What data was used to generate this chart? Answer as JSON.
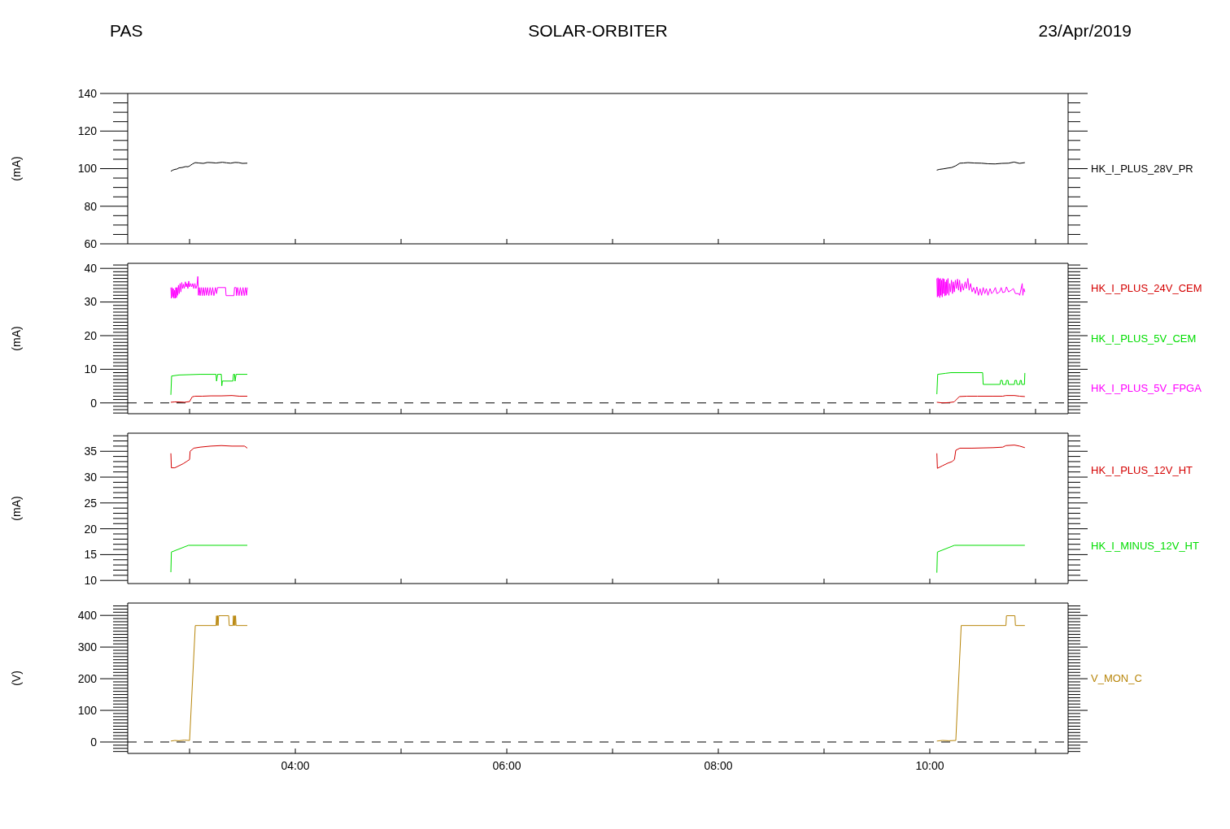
{
  "chart_data": [
    {
      "type": "line",
      "title": "SOLAR-ORBITER",
      "annotations": [
        "PAS",
        "23/Apr/2019"
      ],
      "ylabel": "(mA)",
      "xlim": [
        2.415,
        11.308
      ],
      "xticks": [
        {
          "value": 3,
          "label": null
        },
        {
          "value": 4,
          "label": null
        },
        {
          "value": 5,
          "label": null
        },
        {
          "value": 6,
          "label": null
        },
        {
          "value": 7,
          "label": null
        },
        {
          "value": 8,
          "label": null
        },
        {
          "value": 9,
          "label": null
        },
        {
          "value": 10,
          "label": null
        },
        {
          "value": 11,
          "label": null
        }
      ],
      "tick_labels": "y",
      "ylim": [
        60,
        140
      ],
      "yticks": [
        60,
        {
          "value": 65,
          "label": null
        },
        {
          "value": 70,
          "label": null
        },
        {
          "value": 75,
          "label": null
        },
        80,
        {
          "value": 85,
          "label": null
        },
        {
          "value": 90,
          "label": null
        },
        {
          "value": 95,
          "label": null
        },
        100,
        {
          "value": 105,
          "label": null
        },
        {
          "value": 110,
          "label": null
        },
        {
          "value": 115,
          "label": null
        },
        120,
        {
          "value": 125,
          "label": null
        },
        {
          "value": 130,
          "label": null
        },
        {
          "value": 135,
          "label": null
        },
        140
      ],
      "legend": "right",
      "series": [
        {
          "name": "HK_I_PLUS_28V_PR",
          "color": "#000000",
          "x": [
            2.823,
            2.84,
            2.861,
            2.88,
            2.9,
            2.93,
            2.963,
            2.985,
            3.002,
            3.028,
            3.053,
            3.09,
            3.13,
            3.17,
            3.207,
            3.25,
            3.31,
            3.35,
            3.387,
            3.43,
            3.464,
            3.5,
            3.546,
            6.8,
            10.066,
            10.09,
            10.13,
            10.17,
            10.207,
            10.245,
            10.284,
            10.32,
            10.361,
            10.42,
            10.489,
            10.55,
            10.617,
            10.68,
            10.745,
            10.797,
            10.848,
            10.899
          ],
          "values": [
            98.6,
            99.2,
            99.6,
            99.8,
            100.4,
            100.6,
            101.1,
            101.0,
            101.5,
            102.5,
            103.2,
            103.0,
            102.8,
            103.3,
            103.2,
            103.0,
            103.4,
            103.1,
            102.9,
            103.3,
            103.2,
            102.8,
            102.9,
            null,
            99.2,
            99.6,
            99.9,
            100.3,
            100.6,
            101.5,
            102.9,
            103.0,
            103.2,
            103.0,
            102.9,
            102.6,
            102.5,
            102.8,
            102.9,
            103.5,
            102.8,
            103.2
          ]
        }
      ]
    },
    {
      "type": "line",
      "ylabel": "(mA)",
      "xlim": [
        2.415,
        11.308
      ],
      "xticks": [
        {
          "value": 3,
          "label": null
        },
        {
          "value": 4,
          "label": null
        },
        {
          "value": 5,
          "label": null
        },
        {
          "value": 6,
          "label": null
        },
        {
          "value": 7,
          "label": null
        },
        {
          "value": 8,
          "label": null
        },
        {
          "value": 9,
          "label": null
        },
        {
          "value": 10,
          "label": null
        },
        {
          "value": 11,
          "label": null
        }
      ],
      "tick_labels": "y",
      "ylim": [
        -3.2,
        41.5
      ],
      "yticks": [
        {
          "value": -3,
          "label": null
        },
        {
          "value": -2,
          "label": null
        },
        {
          "value": -1,
          "label": null
        },
        0,
        {
          "value": 1,
          "label": null
        },
        {
          "value": 2,
          "label": null
        },
        {
          "value": 3,
          "label": null
        },
        {
          "value": 4,
          "label": null
        },
        {
          "value": 5,
          "label": null
        },
        {
          "value": 6,
          "label": null
        },
        {
          "value": 7,
          "label": null
        },
        {
          "value": 8,
          "label": null
        },
        {
          "value": 9,
          "label": null
        },
        10,
        {
          "value": 11,
          "label": null
        },
        {
          "value": 12,
          "label": null
        },
        {
          "value": 13,
          "label": null
        },
        {
          "value": 14,
          "label": null
        },
        {
          "value": 15,
          "label": null
        },
        {
          "value": 16,
          "label": null
        },
        {
          "value": 17,
          "label": null
        },
        {
          "value": 18,
          "label": null
        },
        {
          "value": 19,
          "label": null
        },
        20,
        {
          "value": 21,
          "label": null
        },
        {
          "value": 22,
          "label": null
        },
        {
          "value": 23,
          "label": null
        },
        {
          "value": 24,
          "label": null
        },
        {
          "value": 25,
          "label": null
        },
        {
          "value": 26,
          "label": null
        },
        {
          "value": 27,
          "label": null
        },
        {
          "value": 28,
          "label": null
        },
        {
          "value": 29,
          "label": null
        },
        30,
        {
          "value": 31,
          "label": null
        },
        {
          "value": 32,
          "label": null
        },
        {
          "value": 33,
          "label": null
        },
        {
          "value": 34,
          "label": null
        },
        {
          "value": 35,
          "label": null
        },
        {
          "value": 36,
          "label": null
        },
        {
          "value": 37,
          "label": null
        },
        {
          "value": 38,
          "label": null
        },
        {
          "value": 39,
          "label": null
        },
        40,
        {
          "value": 41,
          "label": null
        }
      ],
      "legend": "right",
      "ref_lines": [
        {
          "axis": "y",
          "value": 0,
          "color": "#000000",
          "line_style": "dashed"
        }
      ],
      "series": [
        {
          "name": "HK_I_PLUS_24V_CEM",
          "color": "#d40000",
          "x": [
            2.823,
            2.86,
            2.9,
            2.95,
            3.0,
            3.025,
            3.05,
            3.12,
            3.2,
            3.3,
            3.4,
            3.47,
            3.546,
            6.8,
            10.067,
            10.12,
            10.18,
            10.23,
            10.28,
            10.35,
            10.45,
            10.6,
            10.69,
            10.72,
            10.8,
            10.85,
            10.899
          ],
          "values": [
            0.2,
            0.3,
            0.3,
            0.2,
            0.4,
            1.8,
            2.0,
            2.0,
            2.1,
            2.1,
            2.2,
            2.0,
            2.0,
            null,
            0.2,
            0.0,
            0.1,
            0.3,
            1.9,
            2.0,
            2.0,
            2.0,
            2.0,
            2.2,
            2.2,
            2.0,
            1.9
          ]
        },
        {
          "name": "HK_I_PLUS_5V_CEM",
          "color": "#00dd00",
          "x": [
            2.823,
            2.83,
            2.9,
            3.0,
            3.1,
            3.25,
            3.255,
            3.265,
            3.3,
            3.305,
            3.31,
            3.41,
            3.415,
            3.425,
            3.43,
            3.44,
            3.546,
            6.8,
            10.067,
            10.075,
            10.15,
            10.2,
            10.5,
            10.505,
            10.665,
            10.67,
            10.685,
            10.69,
            10.72,
            10.725,
            10.74,
            10.745,
            10.8,
            10.805,
            10.82,
            10.825,
            10.85,
            10.855,
            10.865,
            10.87,
            10.895,
            10.899
          ],
          "values": [
            2.4,
            8.0,
            8.3,
            8.4,
            8.5,
            8.5,
            6.5,
            8.5,
            8.5,
            5.1,
            6.5,
            6.5,
            8.5,
            8.5,
            6.5,
            8.5,
            8.5,
            null,
            2.6,
            8.5,
            8.8,
            9.0,
            9.0,
            5.5,
            5.5,
            6.7,
            6.7,
            5.5,
            5.5,
            6.7,
            6.7,
            5.5,
            5.5,
            6.7,
            6.7,
            5.5,
            5.5,
            6.7,
            6.7,
            5.5,
            5.5,
            8.9
          ]
        },
        {
          "name": "HK_I_PLUS_5V_FPGA",
          "color": "#ff00ff",
          "x": [
            2.823,
            2.828,
            2.834,
            2.84,
            2.846,
            2.852,
            2.858,
            2.864,
            2.87,
            2.876,
            2.882,
            2.888,
            2.895,
            2.902,
            2.91,
            2.918,
            2.926,
            2.934,
            2.942,
            2.95,
            2.96,
            2.968,
            2.976,
            2.984,
            2.992,
            3.0,
            3.01,
            3.02,
            3.03,
            3.04,
            3.05,
            3.06,
            3.07,
            3.078,
            3.084,
            3.092,
            3.1,
            3.11,
            3.12,
            3.13,
            3.14,
            3.15,
            3.16,
            3.17,
            3.182,
            3.194,
            3.206,
            3.218,
            3.23,
            3.245,
            3.255,
            3.265,
            3.34,
            3.345,
            3.42,
            3.425,
            3.44,
            3.445,
            3.455,
            3.468,
            3.48,
            3.493,
            3.505,
            3.517,
            3.529,
            3.538,
            3.546,
            6.8,
            10.067,
            10.072,
            10.078,
            10.083,
            10.089,
            10.094,
            10.1,
            10.106,
            10.112,
            10.118,
            10.124,
            10.13,
            10.136,
            10.142,
            10.148,
            10.154,
            10.16,
            10.166,
            10.172,
            10.18,
            10.188,
            10.196,
            10.205,
            10.214,
            10.222,
            10.232,
            10.242,
            10.252,
            10.262,
            10.272,
            10.282,
            10.292,
            10.305,
            10.318,
            10.335,
            10.345,
            10.36,
            10.372,
            10.385,
            10.4,
            10.415,
            10.43,
            10.445,
            10.46,
            10.475,
            10.49,
            10.505,
            10.52,
            10.535,
            10.55,
            10.57,
            10.585,
            10.6,
            10.62,
            10.635,
            10.66,
            10.675,
            10.69,
            10.71,
            10.725,
            10.745,
            10.77,
            10.79,
            10.81,
            10.84,
            10.85,
            10.874,
            10.88,
            10.89,
            10.899
          ],
          "values": [
            34.3,
            31.1,
            34.3,
            31.5,
            34.0,
            31.1,
            33.5,
            31.1,
            34.3,
            31.3,
            34.3,
            32.0,
            35.0,
            32.5,
            35.5,
            33.0,
            35.8,
            34.0,
            35.3,
            34.0,
            36.0,
            34.5,
            35.5,
            34.0,
            36.2,
            34.5,
            35.5,
            34.5,
            35.5,
            34.0,
            35.5,
            34.0,
            35.0,
            37.6,
            32.0,
            34.3,
            31.9,
            34.3,
            31.9,
            34.3,
            31.9,
            34.3,
            32.0,
            34.3,
            31.9,
            34.3,
            32.0,
            34.3,
            31.9,
            34.3,
            32.5,
            34.3,
            34.3,
            31.9,
            31.9,
            34.3,
            34.3,
            31.9,
            34.3,
            31.9,
            34.3,
            31.9,
            34.3,
            31.9,
            34.3,
            32.0,
            34.3,
            null,
            37.0,
            31.5,
            37.2,
            31.8,
            36.8,
            31.3,
            37.0,
            32.0,
            36.5,
            31.5,
            37.0,
            32.5,
            36.8,
            31.8,
            36.0,
            32.0,
            36.6,
            32.5,
            37.0,
            32.0,
            35.5,
            33.0,
            36.5,
            32.5,
            36.0,
            33.0,
            36.5,
            34.0,
            36.8,
            33.5,
            36.5,
            33.0,
            35.5,
            33.5,
            36.0,
            34.0,
            37.0,
            33.5,
            35.5,
            33.0,
            34.3,
            32.5,
            34.5,
            32.0,
            34.0,
            32.0,
            34.3,
            32.5,
            34.0,
            32.0,
            34.0,
            32.5,
            33.0,
            34.3,
            32.5,
            33.0,
            34.3,
            32.8,
            33.0,
            34.5,
            33.0,
            33.5,
            34.0,
            32.5,
            32.5,
            32.0,
            35.5,
            32.0,
            34.0,
            33.0
          ]
        }
      ]
    },
    {
      "type": "line",
      "ylabel": "(mA)",
      "xlim": [
        2.415,
        11.308
      ],
      "xticks": [
        {
          "value": 3,
          "label": null
        },
        {
          "value": 4,
          "label": null
        },
        {
          "value": 5,
          "label": null
        },
        {
          "value": 6,
          "label": null
        },
        {
          "value": 7,
          "label": null
        },
        {
          "value": 8,
          "label": null
        },
        {
          "value": 9,
          "label": null
        },
        {
          "value": 10,
          "label": null
        },
        {
          "value": 11,
          "label": null
        }
      ],
      "tick_labels": "y",
      "ylim": [
        9.4,
        38.5
      ],
      "yticks": [
        10,
        {
          "value": 11,
          "label": null
        },
        {
          "value": 12,
          "label": null
        },
        {
          "value": 13,
          "label": null
        },
        {
          "value": 14,
          "label": null
        },
        15,
        {
          "value": 16,
          "label": null
        },
        {
          "value": 17,
          "label": null
        },
        {
          "value": 18,
          "label": null
        },
        {
          "value": 19,
          "label": null
        },
        20,
        {
          "value": 21,
          "label": null
        },
        {
          "value": 22,
          "label": null
        },
        {
          "value": 23,
          "label": null
        },
        {
          "value": 24,
          "label": null
        },
        25,
        {
          "value": 26,
          "label": null
        },
        {
          "value": 27,
          "label": null
        },
        {
          "value": 28,
          "label": null
        },
        {
          "value": 29,
          "label": null
        },
        30,
        {
          "value": 31,
          "label": null
        },
        {
          "value": 32,
          "label": null
        },
        {
          "value": 33,
          "label": null
        },
        {
          "value": 34,
          "label": null
        },
        35,
        {
          "value": 36,
          "label": null
        },
        {
          "value": 37,
          "label": null
        },
        {
          "value": 38,
          "label": null
        }
      ],
      "legend": "right",
      "series": [
        {
          "name": "HK_I_PLUS_12V_HT",
          "color": "#d40000",
          "x": [
            2.823,
            2.828,
            2.86,
            2.9,
            2.94,
            2.97,
            3.0,
            3.005,
            3.04,
            3.1,
            3.2,
            3.3,
            3.4,
            3.52,
            3.546,
            6.8,
            10.067,
            10.072,
            10.12,
            10.17,
            10.21,
            10.233,
            10.246,
            10.284,
            10.4,
            10.6,
            10.69,
            10.72,
            10.8,
            10.85,
            10.899
          ],
          "values": [
            34.6,
            31.8,
            31.8,
            32.2,
            32.6,
            33.0,
            33.4,
            35.0,
            35.6,
            35.8,
            36.0,
            36.1,
            36.0,
            36.0,
            35.6,
            null,
            34.6,
            31.7,
            32.2,
            32.7,
            33.0,
            33.4,
            35.2,
            35.6,
            35.6,
            35.7,
            35.8,
            36.1,
            36.2,
            36.0,
            35.7
          ]
        },
        {
          "name": "HK_I_MINUS_12V_HT",
          "color": "#00dd00",
          "x": [
            2.823,
            2.828,
            2.99,
            3.546,
            6.8,
            10.067,
            10.072,
            10.233,
            10.899
          ],
          "values": [
            11.6,
            15.5,
            16.8,
            16.8,
            null,
            11.5,
            15.5,
            16.8,
            16.8
          ]
        }
      ]
    },
    {
      "type": "line",
      "ylabel": "(V)",
      "xlim": [
        2.415,
        11.308
      ],
      "xticks": [
        {
          "value": 3,
          "label": null
        },
        {
          "value": 4,
          "label": "04:00"
        },
        {
          "value": 5,
          "label": null
        },
        {
          "value": 6,
          "label": "06:00"
        },
        {
          "value": 7,
          "label": null
        },
        {
          "value": 8,
          "label": "08:00"
        },
        {
          "value": 9,
          "label": null
        },
        {
          "value": 10,
          "label": "10:00"
        },
        {
          "value": 11,
          "label": null
        }
      ],
      "ylim": [
        -36,
        439
      ],
      "yticks": [
        {
          "value": -30,
          "label": null
        },
        {
          "value": -20,
          "label": null
        },
        {
          "value": -10,
          "label": null
        },
        0,
        {
          "value": 10,
          "label": null
        },
        {
          "value": 20,
          "label": null
        },
        {
          "value": 30,
          "label": null
        },
        {
          "value": 40,
          "label": null
        },
        {
          "value": 50,
          "label": null
        },
        {
          "value": 60,
          "label": null
        },
        {
          "value": 70,
          "label": null
        },
        {
          "value": 80,
          "label": null
        },
        {
          "value": 90,
          "label": null
        },
        100,
        {
          "value": 110,
          "label": null
        },
        {
          "value": 120,
          "label": null
        },
        {
          "value": 130,
          "label": null
        },
        {
          "value": 140,
          "label": null
        },
        {
          "value": 150,
          "label": null
        },
        {
          "value": 160,
          "label": null
        },
        {
          "value": 170,
          "label": null
        },
        {
          "value": 180,
          "label": null
        },
        {
          "value": 190,
          "label": null
        },
        200,
        {
          "value": 210,
          "label": null
        },
        {
          "value": 220,
          "label": null
        },
        {
          "value": 230,
          "label": null
        },
        {
          "value": 240,
          "label": null
        },
        {
          "value": 250,
          "label": null
        },
        {
          "value": 260,
          "label": null
        },
        {
          "value": 270,
          "label": null
        },
        {
          "value": 280,
          "label": null
        },
        {
          "value": 290,
          "label": null
        },
        300,
        {
          "value": 310,
          "label": null
        },
        {
          "value": 320,
          "label": null
        },
        {
          "value": 330,
          "label": null
        },
        {
          "value": 340,
          "label": null
        },
        {
          "value": 350,
          "label": null
        },
        {
          "value": 360,
          "label": null
        },
        {
          "value": 370,
          "label": null
        },
        {
          "value": 380,
          "label": null
        },
        {
          "value": 390,
          "label": null
        },
        400,
        {
          "value": 410,
          "label": null
        },
        {
          "value": 420,
          "label": null
        },
        {
          "value": 430,
          "label": null
        }
      ],
      "legend": "right",
      "ref_lines": [
        {
          "axis": "y",
          "value": 0,
          "color": "#000000",
          "line_style": "dashed"
        }
      ],
      "series": [
        {
          "name": "V_MON_C",
          "color": "#b8860b",
          "x": [
            2.823,
            2.86,
            2.9,
            2.95,
            3.0,
            3.054,
            3.25,
            3.255,
            3.26,
            3.265,
            3.27,
            3.275,
            3.3,
            3.37,
            3.375,
            3.41,
            3.415,
            3.42,
            3.425,
            3.43,
            3.435,
            3.44,
            3.546,
            6.8,
            10.067,
            10.12,
            10.18,
            10.246,
            10.297,
            10.72,
            10.725,
            10.805,
            10.81,
            10.899
          ],
          "values": [
            3,
            5,
            4,
            6,
            5,
            368,
            368,
            399,
            368,
            399,
            368,
            399,
            399,
            399,
            368,
            368,
            399,
            368,
            399,
            368,
            399,
            368,
            368,
            null,
            3,
            5,
            4,
            5,
            368,
            368,
            399,
            399,
            368,
            368
          ]
        }
      ]
    }
  ]
}
